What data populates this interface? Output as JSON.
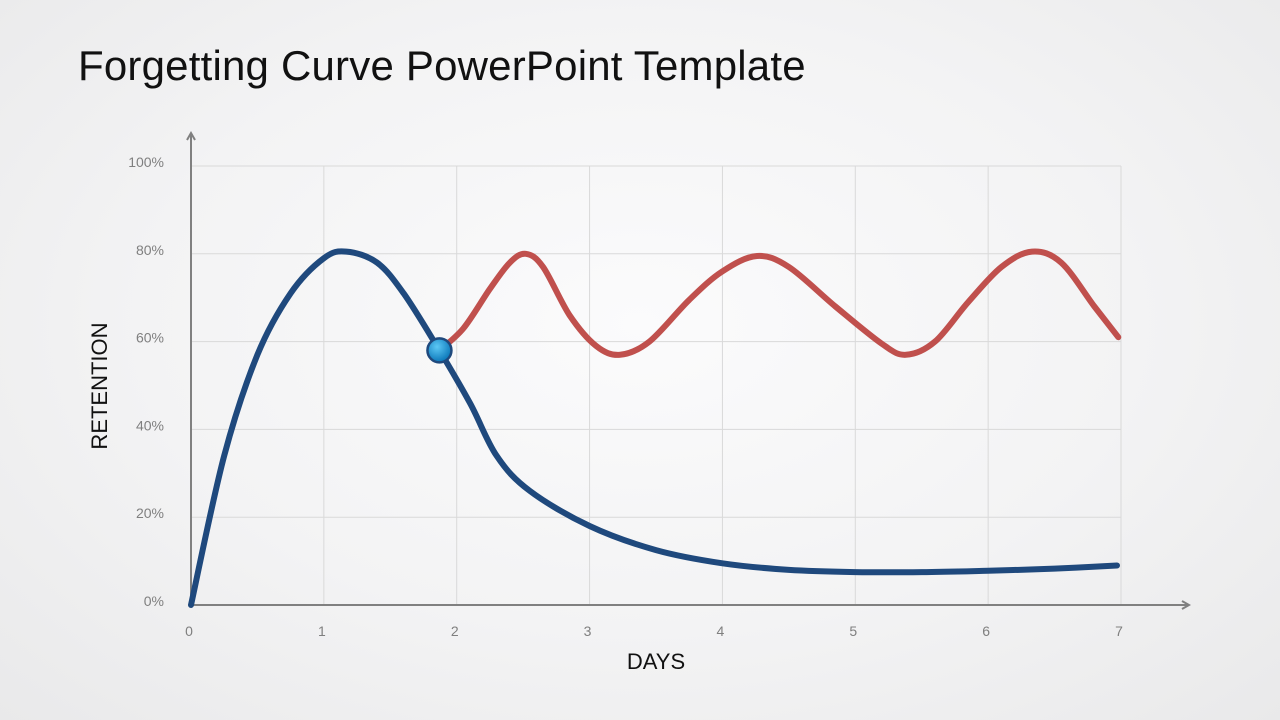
{
  "slide": {
    "title": "Forgetting Curve PowerPoint Template"
  },
  "colors": {
    "forgetting": "#1f497d",
    "retention": "#c0504d",
    "marker": "#1a9bd7",
    "axis": "#808080",
    "grid": "#d9d9d9"
  },
  "chart_data": {
    "type": "line",
    "title": "",
    "xlabel": "DAYS",
    "ylabel": "RETENTION",
    "xlim": [
      0,
      7
    ],
    "ylim": [
      0,
      100
    ],
    "x_ticks": [
      "0",
      "1",
      "2",
      "3",
      "4",
      "5",
      "6",
      "7"
    ],
    "y_ticks": [
      "0%",
      "20%",
      "40%",
      "60%",
      "80%",
      "100%"
    ],
    "grid": true,
    "legend": "none",
    "series": [
      {
        "color": "#1f497d",
        "points": [
          [
            0,
            0
          ],
          [
            0.25,
            34
          ],
          [
            0.5,
            57
          ],
          [
            0.75,
            71
          ],
          [
            1.0,
            79
          ],
          [
            1.17,
            80.5
          ],
          [
            1.4,
            78
          ],
          [
            1.6,
            71
          ],
          [
            1.85,
            59
          ],
          [
            2.1,
            46
          ],
          [
            2.3,
            34
          ],
          [
            2.55,
            26
          ],
          [
            3.0,
            18
          ],
          [
            3.5,
            12.5
          ],
          [
            4.0,
            9.5
          ],
          [
            4.5,
            8
          ],
          [
            5.0,
            7.5
          ],
          [
            5.5,
            7.5
          ],
          [
            6.0,
            7.8
          ],
          [
            6.5,
            8.3
          ],
          [
            6.97,
            9
          ]
        ]
      },
      {
        "color": "#c0504d",
        "points": [
          [
            1.87,
            58
          ],
          [
            2.05,
            63
          ],
          [
            2.25,
            72
          ],
          [
            2.4,
            78
          ],
          [
            2.52,
            80
          ],
          [
            2.65,
            77
          ],
          [
            2.85,
            66
          ],
          [
            3.05,
            59
          ],
          [
            3.23,
            57
          ],
          [
            3.45,
            60
          ],
          [
            3.75,
            69.5
          ],
          [
            4.0,
            76
          ],
          [
            4.26,
            79.5
          ],
          [
            4.5,
            77
          ],
          [
            4.85,
            68
          ],
          [
            5.2,
            59.5
          ],
          [
            5.38,
            57
          ],
          [
            5.6,
            60
          ],
          [
            5.85,
            69
          ],
          [
            6.1,
            77
          ],
          [
            6.33,
            80.5
          ],
          [
            6.55,
            78
          ],
          [
            6.8,
            68
          ],
          [
            6.98,
            61
          ]
        ]
      }
    ],
    "annotations": [
      {
        "type": "marker",
        "x": 1.87,
        "y": 58,
        "color": "#1a9bd7"
      }
    ]
  }
}
